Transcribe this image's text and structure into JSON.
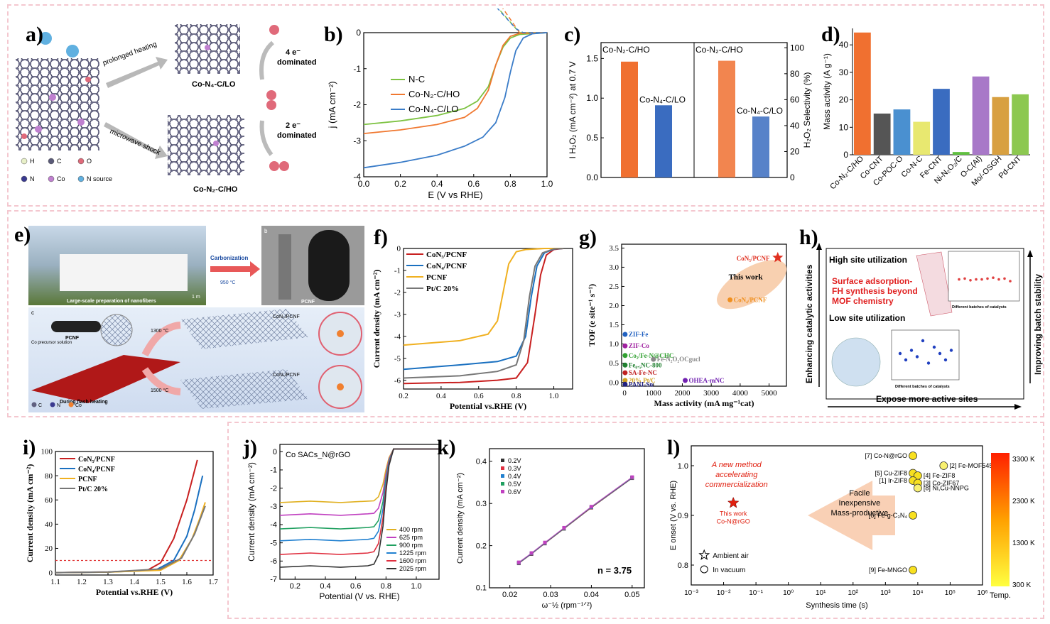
{
  "labels": {
    "a": "a)",
    "b": "b)",
    "c": "c)",
    "d": "d)",
    "e": "e)",
    "f": "f)",
    "g": "g)",
    "h": "h)",
    "i": "i)",
    "j": "j)",
    "k": "k)",
    "l": "l)"
  },
  "panel_a": {
    "arrow_top": "prolonged heating",
    "arrow_bottom": "microwave shock",
    "top_caption": "Co-N₄-C/LO",
    "bottom_caption": "Co-N₂-C/HO",
    "top_mech": "4 e⁻",
    "top_mech2": "dominated",
    "bottom_mech": "2 e⁻",
    "bottom_mech2": "dominated",
    "legend": [
      "H",
      "C",
      "O",
      "N",
      "Co",
      "N source"
    ],
    "legend_colors": [
      "#e8f0c8",
      "#5a5a78",
      "#e06a7a",
      "#3a3a90",
      "#c080d0",
      "#60b0e0"
    ]
  },
  "chart_data": [
    {
      "id": "b",
      "type": "line",
      "xlabel": "E (V vs RHE)",
      "ylabel": "j (mA cm⁻²)",
      "xlim": [
        0,
        1.0
      ],
      "ylim": [
        -4,
        0
      ],
      "xticks": [
        "0.0",
        "0.2",
        "0.4",
        "0.6",
        "0.8",
        "1.0"
      ],
      "yticks": [
        "-4",
        "-3",
        "-2",
        "-1",
        "0"
      ],
      "series": [
        {
          "name": "N-C",
          "color": "#7dc242",
          "x": [
            0,
            0.2,
            0.4,
            0.55,
            0.62,
            0.68,
            0.72,
            0.76,
            0.8,
            0.85,
            1.0
          ],
          "y": [
            -2.55,
            -2.45,
            -2.3,
            -2.1,
            -1.9,
            -1.5,
            -0.9,
            -0.4,
            -0.15,
            -0.05,
            0
          ]
        },
        {
          "name": "Co-N₂-C/HO",
          "color": "#f07830",
          "x": [
            0,
            0.2,
            0.4,
            0.55,
            0.62,
            0.68,
            0.72,
            0.76,
            0.8,
            0.85,
            1.0
          ],
          "y": [
            -2.8,
            -2.7,
            -2.55,
            -2.35,
            -2.1,
            -1.6,
            -0.9,
            -0.35,
            -0.1,
            -0.02,
            0
          ]
        },
        {
          "name": "Co-N₄-C/LO",
          "color": "#3a7cc8",
          "x": [
            0,
            0.2,
            0.4,
            0.55,
            0.65,
            0.72,
            0.77,
            0.8,
            0.83,
            0.87,
            0.92,
            1.0
          ],
          "y": [
            -3.75,
            -3.6,
            -3.4,
            -3.15,
            -2.9,
            -2.5,
            -1.8,
            -1.1,
            -0.5,
            -0.15,
            -0.03,
            0
          ]
        }
      ]
    },
    {
      "id": "c",
      "type": "bar",
      "ylabel_left": "I H₂O₂ (mA cm⁻²) at 0.7 V",
      "ylabel_right": "H₂O₂ Selectivity (%)",
      "yticks_left": [
        "0.0",
        "0.5",
        "1.0",
        "1.5"
      ],
      "ylim_left": [
        0,
        1.7
      ],
      "yticks_right": [
        "0",
        "20",
        "40",
        "60",
        "80",
        "100"
      ],
      "ylim_right": [
        0,
        104
      ],
      "groups": [
        {
          "axis": "left",
          "names": [
            "Co-N₂-C/HO",
            "Co-N₄-C/LO"
          ],
          "values": [
            1.46,
            0.91
          ],
          "colors": [
            "#f07030",
            "#3a6cc0"
          ]
        },
        {
          "axis": "right",
          "names": [
            "Co-N₂-C/HO",
            "Co-N₄-C/LO"
          ],
          "values": [
            90,
            47
          ],
          "colors": [
            "#f07030",
            "#3a6cc0"
          ]
        }
      ]
    },
    {
      "id": "d",
      "type": "bar",
      "ylabel": "Mass activity (A g⁻¹)",
      "ylim": [
        0,
        46
      ],
      "yticks": [
        "0",
        "10",
        "20",
        "30",
        "40"
      ],
      "categories": [
        "Co-N₂-C/HO",
        "Co-CNT",
        "Co-POC-O",
        "Co-N-C",
        "Fe-CNT",
        "Ni-N₂O₂/C",
        "O-C(Al)",
        "Mo/-OSGH",
        "Pd-CNT"
      ],
      "values": [
        44.5,
        15,
        16.5,
        12,
        24,
        1,
        28.5,
        21,
        22
      ],
      "colors": [
        "#f07030",
        "#555555",
        "#4a90d0",
        "#e8e870",
        "#3a6cc0",
        "#60c040",
        "#a878c8",
        "#d8a040",
        "#8cc850"
      ]
    },
    {
      "id": "f",
      "type": "line",
      "xlabel": "Potential vs.RHE (V)",
      "ylabel": "Current density (mA cm⁻²)",
      "xlim": [
        0.2,
        1.1
      ],
      "ylim": [
        -6.4,
        0
      ],
      "xticks": [
        "0.2",
        "0.4",
        "0.6",
        "0.8",
        "1.0"
      ],
      "yticks": [
        "-6",
        "-5",
        "-4",
        "-3",
        "-2",
        "-1",
        "0"
      ],
      "series": [
        {
          "name": "CoN₅/PCNF",
          "color": "#c82020",
          "x": [
            0.2,
            0.5,
            0.7,
            0.8,
            0.86,
            0.9,
            0.93,
            0.96,
            1.0,
            1.05
          ],
          "y": [
            -6.15,
            -6.1,
            -6.0,
            -5.9,
            -5.2,
            -3.0,
            -1.2,
            -0.3,
            -0.05,
            0
          ]
        },
        {
          "name": "CoN₄/PCNF",
          "color": "#1a70c0",
          "x": [
            0.2,
            0.5,
            0.7,
            0.8,
            0.85,
            0.88,
            0.91,
            0.95,
            1.0,
            1.05
          ],
          "y": [
            -5.5,
            -5.3,
            -5.15,
            -4.9,
            -4.0,
            -2.2,
            -0.8,
            -0.2,
            -0.03,
            0
          ]
        },
        {
          "name": "PCNF",
          "color": "#f0b020",
          "x": [
            0.2,
            0.5,
            0.65,
            0.7,
            0.73,
            0.76,
            0.8,
            0.85,
            0.95,
            1.05
          ],
          "y": [
            -4.4,
            -4.2,
            -3.9,
            -3.3,
            -2.0,
            -0.7,
            -0.15,
            -0.05,
            0,
            0
          ]
        },
        {
          "name": "Pt/C 20%",
          "color": "#777777",
          "x": [
            0.2,
            0.5,
            0.7,
            0.8,
            0.84,
            0.87,
            0.9,
            0.94,
            1.0,
            1.05
          ],
          "y": [
            -5.9,
            -5.8,
            -5.6,
            -5.3,
            -4.2,
            -2.2,
            -0.8,
            -0.2,
            -0.02,
            0
          ]
        }
      ]
    },
    {
      "id": "g",
      "type": "scatter",
      "xlabel": "Mass activity (mA mg⁻¹cat)",
      "ylabel": "TOF (e site⁻¹ s⁻¹)",
      "xlim": [
        -100,
        5600
      ],
      "ylim": [
        -0.1,
        3.6
      ],
      "xticks": [
        "0",
        "1000",
        "2000",
        "3000",
        "4000",
        "5000"
      ],
      "yticks": [
        "0.0",
        "0.5",
        "1.0",
        "1.5",
        "2.0",
        "2.5",
        "3.0",
        "3.5"
      ],
      "callout": "This work",
      "points": [
        {
          "label": "CoN₅/PCNF",
          "x": 5300,
          "y": 3.25,
          "color": "#e03020",
          "marker": "star"
        },
        {
          "label": "CoN₄/PCNF",
          "x": 3650,
          "y": 2.15,
          "color": "#f09020",
          "marker": "circle"
        },
        {
          "label": "ZIF-Fe",
          "x": 20,
          "y": 1.25,
          "color": "#2060c0",
          "marker": "circle"
        },
        {
          "label": "ZIF-Co",
          "x": 20,
          "y": 0.95,
          "color": "#a020a0",
          "marker": "circle"
        },
        {
          "label": "Co₂/Fe-N@CHC",
          "x": 20,
          "y": 0.7,
          "color": "#30a030",
          "marker": "circle"
        },
        {
          "label": "Fe-N₂O₂OCgucl",
          "x": 1000,
          "y": 0.6,
          "color": "#888888",
          "marker": "circle"
        },
        {
          "label": "Fe₀.₅NC-800",
          "x": 20,
          "y": 0.45,
          "color": "#208030",
          "marker": "circle"
        },
        {
          "label": "SA-Fe-NC",
          "x": 20,
          "y": 0.25,
          "color": "#c02020",
          "marker": "circle"
        },
        {
          "label": "20% Pt/C",
          "x": 20,
          "y": 0.05,
          "color": "#d0a020",
          "marker": "circle"
        },
        {
          "label": "OHEA-mNC",
          "x": 2100,
          "y": 0.05,
          "color": "#7020b0",
          "marker": "circle"
        },
        {
          "label": "PANI-Sn",
          "x": 20,
          "y": -0.05,
          "color": "#202080",
          "marker": "circle"
        }
      ]
    },
    {
      "id": "i",
      "type": "line",
      "xlabel": "Potential vs.RHE (V)",
      "ylabel": "Current density (mA cm⁻²)",
      "xlim": [
        1.1,
        1.7
      ],
      "ylim": [
        -2,
        100
      ],
      "xticks": [
        "1.1",
        "1.2",
        "1.3",
        "1.4",
        "1.5",
        "1.6",
        "1.7"
      ],
      "yticks": [
        "0",
        "20",
        "40",
        "60",
        "80",
        "100"
      ],
      "reference_y": 10,
      "series": [
        {
          "name": "CoN₅/PCNF",
          "color": "#c82020",
          "x": [
            1.1,
            1.3,
            1.45,
            1.5,
            1.55,
            1.6,
            1.64
          ],
          "y": [
            0,
            0.5,
            2,
            8,
            28,
            60,
            93
          ]
        },
        {
          "name": "CoN₄/PCNF",
          "color": "#1a70c0",
          "x": [
            1.1,
            1.3,
            1.48,
            1.55,
            1.6,
            1.63,
            1.66
          ],
          "y": [
            0,
            0.4,
            2,
            10,
            30,
            52,
            80
          ]
        },
        {
          "name": "PCNF",
          "color": "#f0b020",
          "x": [
            1.1,
            1.3,
            1.5,
            1.57,
            1.62,
            1.65,
            1.67
          ],
          "y": [
            0,
            0.4,
            2,
            10,
            28,
            45,
            58
          ]
        },
        {
          "name": "Pt/C 20%",
          "color": "#777777",
          "x": [
            1.1,
            1.3,
            1.5,
            1.58,
            1.63,
            1.67
          ],
          "y": [
            0,
            0.5,
            3,
            12,
            32,
            55
          ]
        }
      ]
    },
    {
      "id": "j",
      "type": "line",
      "title": "Co SACs_N@rGO",
      "xlabel": "Potential (V vs. RHE)",
      "ylabel": "Current density (mA cm⁻²)",
      "xlim": [
        0.1,
        1.15
      ],
      "ylim": [
        -7,
        0.4
      ],
      "xticks": [
        "0.2",
        "0.4",
        "0.6",
        "0.8",
        "1.0"
      ],
      "yticks": [
        "-7",
        "-6",
        "-5",
        "-4",
        "-3",
        "-2",
        "-1",
        "0"
      ],
      "series": [
        {
          "name": "400 rpm",
          "color": "#e0b020",
          "plateau": -2.75
        },
        {
          "name": "625 rpm",
          "color": "#c040c0",
          "plateau": -3.45
        },
        {
          "name": "900 rpm",
          "color": "#20a060",
          "plateau": -4.2
        },
        {
          "name": "1225 rpm",
          "color": "#2080d0",
          "plateau": -4.85
        },
        {
          "name": "1600 rpm",
          "color": "#e03040",
          "plateau": -5.6
        },
        {
          "name": "2025 rpm",
          "color": "#333333",
          "plateau": -6.3
        }
      ]
    },
    {
      "id": "k",
      "type": "scatter",
      "xlabel": "ω⁻½ (rpm⁻¹ᐟ²)",
      "ylabel": "Current density (mA cm⁻²)",
      "xlim": [
        0.015,
        0.053
      ],
      "ylim": [
        0.1,
        0.43
      ],
      "xticks": [
        "0.02",
        "0.03",
        "0.04",
        "0.05"
      ],
      "yticks": [
        "0.1",
        "0.2",
        "0.3",
        "0.4"
      ],
      "annotation": "n = 3.75",
      "legend": [
        {
          "name": "0.2V",
          "color": "#333333"
        },
        {
          "name": "0.3V",
          "color": "#e03040"
        },
        {
          "name": "0.4V",
          "color": "#2080d0"
        },
        {
          "name": "0.5V",
          "color": "#20a060"
        },
        {
          "name": "0.6V",
          "color": "#c040c0"
        }
      ],
      "x": [
        0.0222,
        0.0253,
        0.0286,
        0.0333,
        0.04,
        0.05
      ],
      "y": [
        0.158,
        0.18,
        0.205,
        0.24,
        0.29,
        0.36
      ]
    },
    {
      "id": "l",
      "type": "scatter",
      "xlabel": "Synthesis time (s)",
      "ylabel": "E onset (V vs. RHE)",
      "xscale": "log",
      "xlim_exp": [
        -3,
        6
      ],
      "ylim": [
        0.76,
        1.04
      ],
      "xticks": [
        "10⁻³",
        "10⁻²",
        "10⁻¹",
        "10⁰",
        "10¹",
        "10²",
        "10³",
        "10⁴",
        "10⁵",
        "10⁶"
      ],
      "yticks": [
        "0.8",
        "0.9",
        "1.0"
      ],
      "highlight_title": [
        "A new method",
        "accelerating",
        "commercialization"
      ],
      "arrow_text": [
        "Facile",
        "Inexpensive",
        "Mass-productive"
      ],
      "legend": [
        "Ambient air",
        "In vacuum"
      ],
      "colorbar_title": "Temp.",
      "colorbar_ticks": [
        "3300 K",
        "2300 K",
        "1300 K",
        "300 K"
      ],
      "points": [
        {
          "label": "This work Co-N@rGO",
          "exp": -1.7,
          "y": 0.925,
          "marker": "star",
          "color": "#e02010"
        },
        {
          "label": "[7] Co-N@rGO",
          "exp": 3.85,
          "y": 1.02,
          "marker": "circle",
          "color": "#f8e020"
        },
        {
          "label": "[2] Fe-MOF545",
          "exp": 4.8,
          "y": 1.0,
          "marker": "circle",
          "color": "#f8f070"
        },
        {
          "label": "[5] Cu-ZIF8",
          "exp": 3.85,
          "y": 0.985,
          "marker": "circle",
          "color": "#f8e020"
        },
        {
          "label": "[4] Fe-ZIF8",
          "exp": 4.0,
          "y": 0.98,
          "marker": "circle",
          "color": "#f8e020"
        },
        {
          "label": "[1] Ir-ZIF8",
          "exp": 3.85,
          "y": 0.97,
          "marker": "circle",
          "color": "#f8e020"
        },
        {
          "label": "[3] Co-ZIF67",
          "exp": 4.0,
          "y": 0.965,
          "marker": "circle",
          "color": "#f8e020"
        },
        {
          "label": "[8] Ni,Cu-NNPG",
          "exp": 4.0,
          "y": 0.955,
          "marker": "circle",
          "color": "#f8f070"
        },
        {
          "label": "[6] Fe-g-C₃N₄",
          "exp": 3.85,
          "y": 0.9,
          "marker": "circle",
          "color": "#f8e020"
        },
        {
          "label": "[9] Fe-MNGO",
          "exp": 3.85,
          "y": 0.79,
          "marker": "circle",
          "color": "#f8e020"
        }
      ]
    }
  ],
  "panel_e": {
    "photo1_caption": "Large-scale preparation of nanofibers",
    "scale": "1 m",
    "arrow_label": "Carbonization",
    "arrow_temp": "950 °C",
    "photo2_caption": "PCNF",
    "sub_b": "b",
    "sub_c": "c",
    "fiber_label": "PCNF",
    "precursor": "Co precursor solution",
    "heating": "During flash heating",
    "temp_high": "1300 °C",
    "temp_low": "1500 °C",
    "prod_top": "CoN₅/PCNF",
    "prod_bottom": "CoN₄/PCNF",
    "legend": [
      "C",
      "N",
      "Co"
    ]
  },
  "panel_h": {
    "y_axis_left": "Enhancing catalytic activities",
    "y_axis_right": "Improving batch stability",
    "x_axis": "Expose more active sites",
    "high": "High site utilization",
    "low": "Low site utilization",
    "center_text": [
      "Surface adsorption-",
      "FH synthesis beyond",
      "MOF chemistry"
    ],
    "inset_x": "Different batches of catalysts",
    "inset_y": "E1/2 (V vs. RHE)"
  }
}
